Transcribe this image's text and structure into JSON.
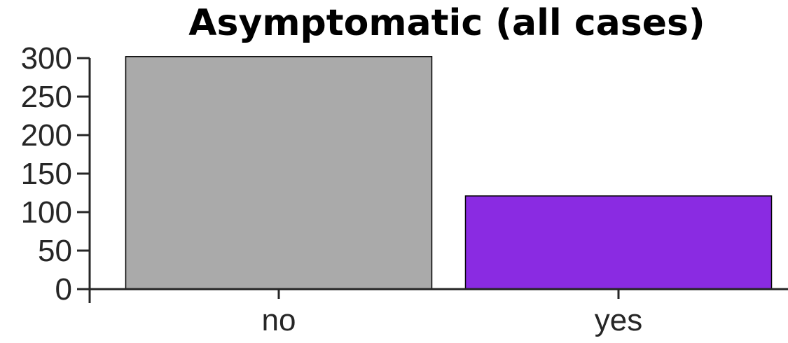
{
  "chart_data": {
    "type": "bar",
    "title": "Asymptomatic (all cases)",
    "xlabel": "",
    "ylabel": "",
    "categories": [
      "no",
      "yes"
    ],
    "values": [
      302,
      121
    ],
    "colors": [
      "#aaaaaa",
      "#8a2be2"
    ],
    "ylim": [
      0,
      300
    ],
    "yticks": [
      0,
      50,
      100,
      150,
      200,
      250,
      300
    ],
    "grid": false,
    "legend": "none"
  }
}
